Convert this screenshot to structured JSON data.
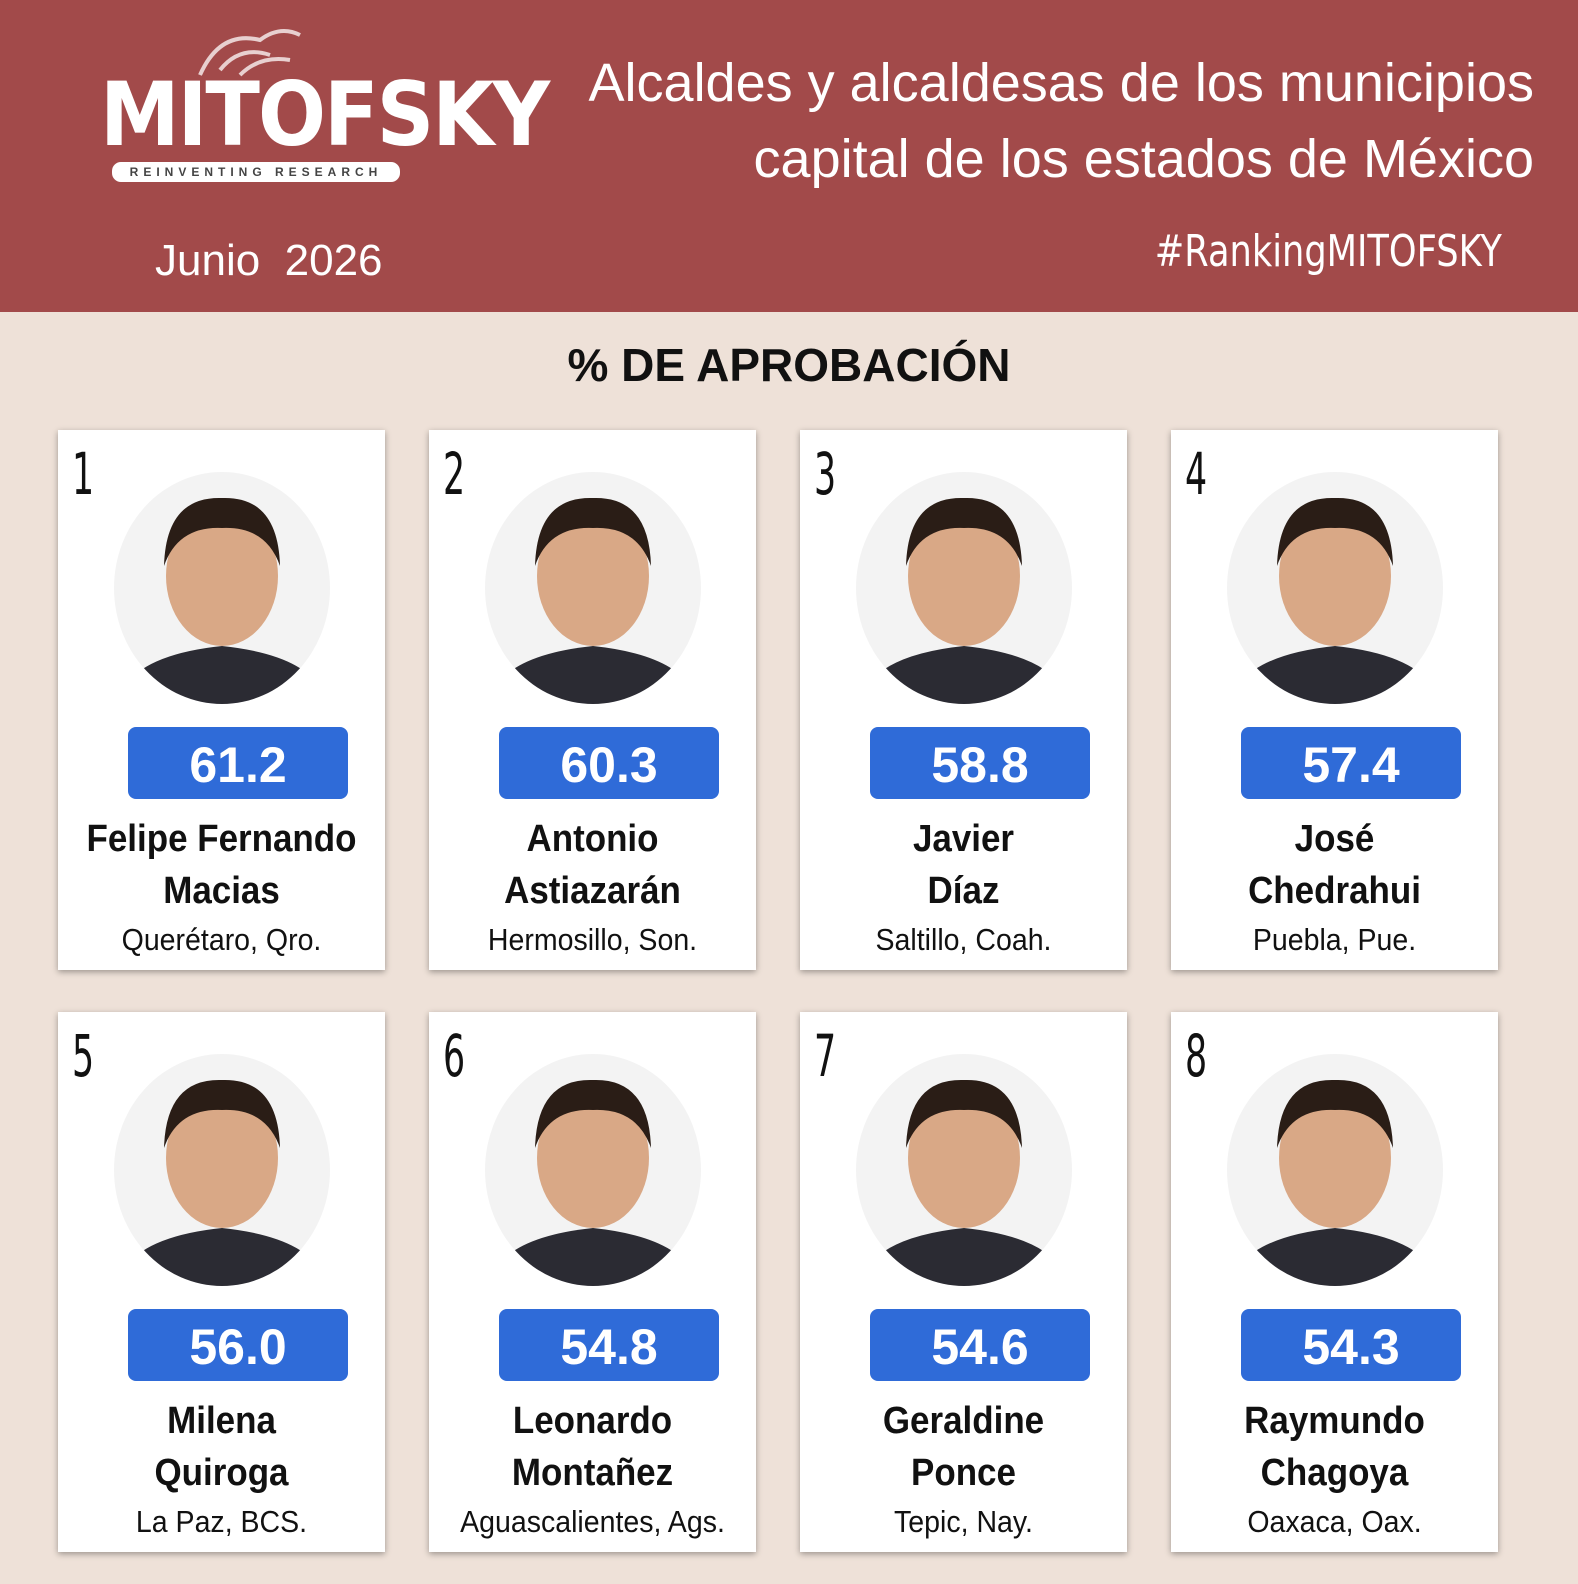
{
  "header": {
    "logo": "MITOFSKY",
    "tagline": "REINVENTING RESEARCH",
    "date": "Junio  2026",
    "title": [
      "Alcaldes y alcaldesas de los municipios",
      "capital de los estados de México"
    ],
    "hashtag": "#RankingMITOFSKY"
  },
  "section_title": "% DE APROBACIÓN",
  "cards": [
    {
      "rank": "1",
      "score": "61.2",
      "name": [
        "Felipe Fernando",
        "Macias"
      ],
      "place": "Querétaro, Qro."
    },
    {
      "rank": "2",
      "score": "60.3",
      "name": [
        "Antonio",
        "Astiazarán"
      ],
      "place": "Hermosillo, Son."
    },
    {
      "rank": "3",
      "score": "58.8",
      "name": [
        "Javier",
        "Díaz"
      ],
      "place": "Saltillo, Coah."
    },
    {
      "rank": "4",
      "score": "57.4",
      "name": [
        "José",
        "Chedrahui"
      ],
      "place": "Puebla, Pue."
    },
    {
      "rank": "5",
      "score": "56.0",
      "name": [
        "Milena",
        "Quiroga"
      ],
      "place": "La Paz, BCS."
    },
    {
      "rank": "6",
      "score": "54.8",
      "name": [
        "Leonardo",
        "Montañez"
      ],
      "place": "Aguascalientes, Ags."
    },
    {
      "rank": "7",
      "score": "54.6",
      "name": [
        "Geraldine",
        "Ponce"
      ],
      "place": "Tepic, Nay."
    },
    {
      "rank": "8",
      "score": "54.3",
      "name": [
        "Raymundo",
        "Chagoya"
      ],
      "place": "Oaxaca, Oax."
    }
  ]
}
